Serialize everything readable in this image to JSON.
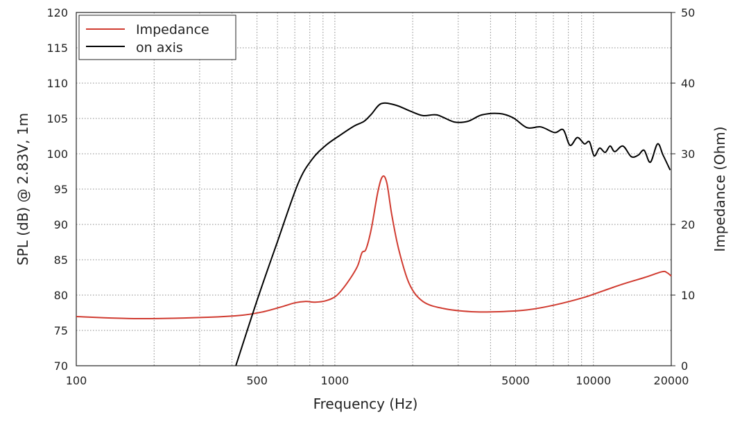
{
  "chart_data": {
    "type": "line",
    "xlabel": "Frequency (Hz)",
    "ylabel": "SPL (dB) @ 2.83V, 1m",
    "y2label": "Impedance (Ohm)",
    "xscale": "log",
    "xlim": [
      100,
      20000
    ],
    "ylim": [
      70,
      120
    ],
    "y2lim": [
      0,
      50
    ],
    "grid": true,
    "legend_position": "top-left",
    "x_ticks": [
      100,
      500,
      1000,
      5000,
      10000,
      20000
    ],
    "x_tick_labels": [
      "100",
      "500",
      "1000",
      "5000",
      "10000",
      "20000"
    ],
    "y_ticks": [
      70,
      75,
      80,
      85,
      90,
      95,
      100,
      105,
      110,
      115,
      120
    ],
    "y_tick_labels": [
      "70",
      "75",
      "80",
      "85",
      "90",
      "95",
      "100",
      "105",
      "110",
      "115",
      "120"
    ],
    "y2_ticks": [
      0,
      10,
      20,
      30,
      40,
      50
    ],
    "y2_tick_labels": [
      "0",
      "10",
      "20",
      "30",
      "40",
      "50"
    ],
    "series": [
      {
        "name": "Impedance",
        "axis": "right",
        "color": "#d03a2f",
        "x": [
          100,
          174,
          323,
          440,
          530,
          617,
          700,
          767,
          840,
          923,
          1013,
          1110,
          1220,
          1273,
          1320,
          1384,
          1470,
          1532,
          1590,
          1660,
          1765,
          1940,
          2190,
          2630,
          3370,
          4320,
          5540,
          7080,
          9060,
          10900,
          13100,
          15800,
          18400,
          19200,
          20000
        ],
        "y": [
          6.96,
          6.67,
          6.86,
          7.16,
          7.65,
          8.3,
          8.9,
          9.1,
          9.0,
          9.2,
          9.9,
          11.6,
          14.0,
          16.0,
          16.5,
          19.4,
          24.8,
          26.8,
          25.8,
          21.4,
          16.5,
          11.6,
          9.1,
          8.1,
          7.65,
          7.65,
          7.9,
          8.6,
          9.6,
          10.6,
          11.6,
          12.5,
          13.3,
          13.2,
          12.7
        ]
      },
      {
        "name": "on axis",
        "axis": "left",
        "color": "#000000",
        "x": [
          414,
          504,
          599,
          721,
          816,
          923,
          1045,
          1184,
          1298,
          1384,
          1512,
          1713,
          1940,
          2190,
          2480,
          2895,
          3270,
          3700,
          4320,
          4890,
          5540,
          6260,
          7080,
          7640,
          8120,
          8670,
          9230,
          9650,
          10070,
          10560,
          11100,
          11600,
          12100,
          13000,
          14000,
          14900,
          15700,
          16600,
          17700,
          18600,
          19800
        ],
        "y": [
          70,
          79.6,
          87.5,
          95.8,
          99.2,
          101.2,
          102.6,
          103.9,
          104.6,
          105.6,
          107.1,
          106.9,
          106.1,
          105.4,
          105.5,
          104.5,
          104.6,
          105.5,
          105.7,
          105.1,
          103.7,
          103.8,
          103.0,
          103.4,
          101.2,
          102.3,
          101.4,
          101.7,
          99.7,
          100.8,
          100.2,
          101.1,
          100.3,
          101.1,
          99.6,
          99.8,
          100.5,
          98.8,
          101.4,
          99.8,
          97.7
        ]
      }
    ]
  }
}
